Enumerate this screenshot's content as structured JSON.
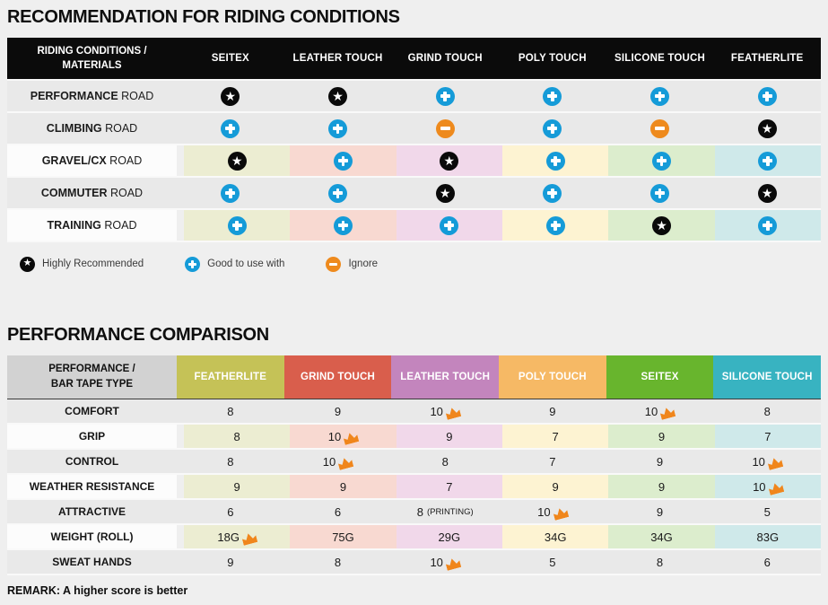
{
  "colors": {
    "star": "#0a0a0a",
    "plus": "#159bd8",
    "minus": "#ee8a1d",
    "crown": "#f0861c",
    "header1_bg": "#0b0b0b",
    "row_gray": "#e9e9e9",
    "page_bg": "#efefef"
  },
  "section1": {
    "title": "RECOMMENDATION FOR RIDING CONDITIONS",
    "table": {
      "header_lines": [
        "RIDING CONDITIONS /",
        "MATERIALS"
      ],
      "columns": [
        "SEITEX",
        "LEATHER TOUCH",
        "GRIND TOUCH",
        "POLY TOUCH",
        "SILICONE TOUCH",
        "FEATHERLITE"
      ],
      "tints": [
        "#ecedd2",
        "#f8d9d1",
        "#f1d8ea",
        "#fdf3d2",
        "#dcedcd",
        "#cfe9ea"
      ],
      "rows": [
        {
          "label_strong": "PERFORMANCE",
          "label_rest": "ROAD",
          "tinted": false,
          "icons": [
            "star",
            "star",
            "plus",
            "plus",
            "plus",
            "plus"
          ]
        },
        {
          "label_strong": "CLIMBING",
          "label_rest": "ROAD",
          "tinted": false,
          "icons": [
            "plus",
            "plus",
            "minus",
            "plus",
            "minus",
            "star"
          ]
        },
        {
          "label_strong": "GRAVEL/CX",
          "label_rest": "ROAD",
          "tinted": true,
          "icons": [
            "star",
            "plus",
            "star",
            "plus",
            "plus",
            "plus"
          ]
        },
        {
          "label_strong": "COMMUTER",
          "label_rest": "ROAD",
          "tinted": false,
          "icons": [
            "plus",
            "plus",
            "star",
            "plus",
            "plus",
            "star"
          ]
        },
        {
          "label_strong": "TRAINING",
          "label_rest": "ROAD",
          "tinted": true,
          "icons": [
            "plus",
            "plus",
            "plus",
            "plus",
            "star",
            "plus"
          ]
        }
      ]
    },
    "legend": [
      {
        "icon": "star",
        "label": "Highly Recommended"
      },
      {
        "icon": "plus",
        "label": "Good to use with"
      },
      {
        "icon": "minus",
        "label": "Ignore"
      }
    ]
  },
  "section2": {
    "title": "PERFORMANCE COMPARISON",
    "table": {
      "header_lines": [
        "PERFORMANCE /",
        "BAR TAPE TYPE"
      ],
      "columns": [
        {
          "label": "FEATHERLITE",
          "color": "#c5c257",
          "tint": "#ecedd2"
        },
        {
          "label": "GRIND TOUCH",
          "color": "#d95e4c",
          "tint": "#f8d9d1"
        },
        {
          "label": "LEATHER TOUCH",
          "color": "#c385bd",
          "tint": "#f1d8ea"
        },
        {
          "label": "POLY TOUCH",
          "color": "#f6b965",
          "tint": "#fdf3d2"
        },
        {
          "label": "SEITEX",
          "color": "#68b52d",
          "tint": "#dcedcd"
        },
        {
          "label": "SILICONE TOUCH",
          "color": "#38b3c1",
          "tint": "#cfe9ea"
        }
      ],
      "rows": [
        {
          "label": "COMFORT",
          "tinted": false,
          "cells": [
            {
              "v": "8"
            },
            {
              "v": "9"
            },
            {
              "v": "10",
              "crown": true
            },
            {
              "v": "9"
            },
            {
              "v": "10",
              "crown": true
            },
            {
              "v": "8"
            }
          ]
        },
        {
          "label": "GRIP",
          "tinted": true,
          "cells": [
            {
              "v": "8"
            },
            {
              "v": "10",
              "crown": true
            },
            {
              "v": "9"
            },
            {
              "v": "7"
            },
            {
              "v": "9"
            },
            {
              "v": "7"
            }
          ]
        },
        {
          "label": "CONTROL",
          "tinted": false,
          "cells": [
            {
              "v": "8"
            },
            {
              "v": "10",
              "crown": true
            },
            {
              "v": "8"
            },
            {
              "v": "7"
            },
            {
              "v": "9"
            },
            {
              "v": "10",
              "crown": true
            }
          ]
        },
        {
          "label": "WEATHER RESISTANCE",
          "tinted": true,
          "cells": [
            {
              "v": "9"
            },
            {
              "v": "9"
            },
            {
              "v": "7"
            },
            {
              "v": "9"
            },
            {
              "v": "9"
            },
            {
              "v": "10",
              "crown": true
            }
          ]
        },
        {
          "label": "ATTRACTIVE",
          "tinted": false,
          "cells": [
            {
              "v": "6"
            },
            {
              "v": "6"
            },
            {
              "v": "8",
              "note": "(PRINTING)"
            },
            {
              "v": "10",
              "crown": true
            },
            {
              "v": "9"
            },
            {
              "v": "5"
            }
          ]
        },
        {
          "label": "WEIGHT (ROLL)",
          "tinted": true,
          "cells": [
            {
              "v": "18G",
              "crown": true
            },
            {
              "v": "75G"
            },
            {
              "v": "29G"
            },
            {
              "v": "34G"
            },
            {
              "v": "34G"
            },
            {
              "v": "83G"
            }
          ]
        },
        {
          "label": "SWEAT HANDS",
          "tinted": false,
          "cells": [
            {
              "v": "9"
            },
            {
              "v": "8"
            },
            {
              "v": "10",
              "crown": true
            },
            {
              "v": "5"
            },
            {
              "v": "8"
            },
            {
              "v": "6"
            }
          ]
        }
      ]
    },
    "remark": "REMARK: A higher score is better"
  },
  "chart_data": [
    {
      "type": "table",
      "title": "RECOMMENDATION FOR RIDING CONDITIONS",
      "columns": [
        "RIDING CONDITIONS / MATERIALS",
        "SEITEX",
        "LEATHER TOUCH",
        "GRIND TOUCH",
        "POLY TOUCH",
        "SILICONE TOUCH",
        "FEATHERLITE"
      ],
      "rows": [
        [
          "PERFORMANCE ROAD",
          "Highly Recommended",
          "Highly Recommended",
          "Good to use with",
          "Good to use with",
          "Good to use with",
          "Good to use with"
        ],
        [
          "CLIMBING ROAD",
          "Good to use with",
          "Good to use with",
          "Ignore",
          "Good to use with",
          "Ignore",
          "Highly Recommended"
        ],
        [
          "GRAVEL/CX ROAD",
          "Highly Recommended",
          "Good to use with",
          "Highly Recommended",
          "Good to use with",
          "Good to use with",
          "Good to use with"
        ],
        [
          "COMMUTER ROAD",
          "Good to use with",
          "Good to use with",
          "Highly Recommended",
          "Good to use with",
          "Good to use with",
          "Highly Recommended"
        ],
        [
          "TRAINING ROAD",
          "Good to use with",
          "Good to use with",
          "Good to use with",
          "Good to use with",
          "Highly Recommended",
          "Good to use with"
        ]
      ],
      "legend": [
        "Highly Recommended",
        "Good to use with",
        "Ignore"
      ]
    },
    {
      "type": "table",
      "title": "PERFORMANCE COMPARISON",
      "columns": [
        "PERFORMANCE / BAR TAPE TYPE",
        "FEATHERLITE",
        "GRIND TOUCH",
        "LEATHER TOUCH",
        "POLY TOUCH",
        "SEITEX",
        "SILICONE TOUCH"
      ],
      "rows": [
        [
          "COMFORT",
          "8",
          "9",
          "10 (crown)",
          "9",
          "10 (crown)",
          "8"
        ],
        [
          "GRIP",
          "8",
          "10 (crown)",
          "9",
          "7",
          "9",
          "7"
        ],
        [
          "CONTROL",
          "8",
          "10 (crown)",
          "8",
          "7",
          "9",
          "10 (crown)"
        ],
        [
          "WEATHER RESISTANCE",
          "9",
          "9",
          "7",
          "9",
          "9",
          "10 (crown)"
        ],
        [
          "ATTRACTIVE",
          "6",
          "6",
          "8 (PRINTING)",
          "10 (crown)",
          "9",
          "5"
        ],
        [
          "WEIGHT (ROLL)",
          "18G (crown)",
          "75G",
          "29G",
          "34G",
          "34G",
          "83G"
        ],
        [
          "SWEAT HANDS",
          "9",
          "8",
          "10 (crown)",
          "5",
          "8",
          "6"
        ]
      ],
      "note": "REMARK: A higher score is better"
    }
  ]
}
